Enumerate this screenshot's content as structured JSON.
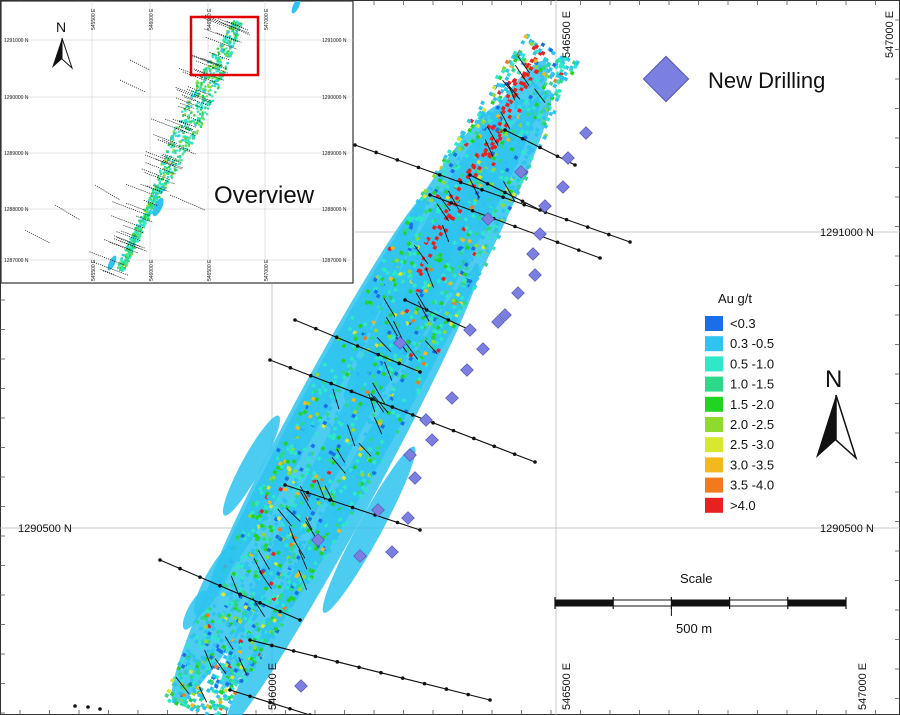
{
  "main_map": {
    "easting_labels_top": [
      "546500 E",
      "547000 E"
    ],
    "easting_labels_bottom": [
      "546000 E",
      "546500 E",
      "547000 E"
    ],
    "northing_labels_left": [
      "1290500 N"
    ],
    "northing_labels_right": [
      "1291000 N",
      "1290500 N"
    ]
  },
  "new_drilling_label": "New Drilling",
  "north_arrow_label": "N",
  "legend": {
    "title": "Au g/t",
    "items": [
      {
        "label": "<0.3",
        "color": "#1a6fe8"
      },
      {
        "label": "0.3 -0.5",
        "color": "#2ec3f0"
      },
      {
        "label": "0.5 -1.0",
        "color": "#2ee8c8"
      },
      {
        "label": "1.0 -1.5",
        "color": "#2ed889"
      },
      {
        "label": "1.5 -2.0",
        "color": "#22d422"
      },
      {
        "label": "2.0 -2.5",
        "color": "#8edb2e"
      },
      {
        "label": "2.5 -3.0",
        "color": "#d8e82e"
      },
      {
        "label": "3.0 -3.5",
        "color": "#f2b81c"
      },
      {
        "label": "3.5 -4.0",
        "color": "#f07a1c"
      },
      {
        "label": ">4.0",
        "color": "#e82020"
      }
    ]
  },
  "scale": {
    "title": "Scale",
    "distance": "500 m"
  },
  "inset": {
    "title": "Overview",
    "north_label": "N",
    "easting_labels_top": [
      "545500 E",
      "546000 E",
      "546500 E",
      "547000 E"
    ],
    "easting_labels_bottom": [
      "545500 E",
      "546000 E",
      "546500 E",
      "547000 E"
    ],
    "northing_labels_left": [
      "1291000 N",
      "1290000 N",
      "1289000 N",
      "1288000 N",
      "1287000 N"
    ],
    "northing_labels_right": [
      "1291000 N",
      "1290000 N",
      "1289000 N",
      "1288000 N",
      "1287000 N"
    ]
  },
  "colors": {
    "drill_marker": "#7b7fe0",
    "highlight_box": "#e00000"
  }
}
